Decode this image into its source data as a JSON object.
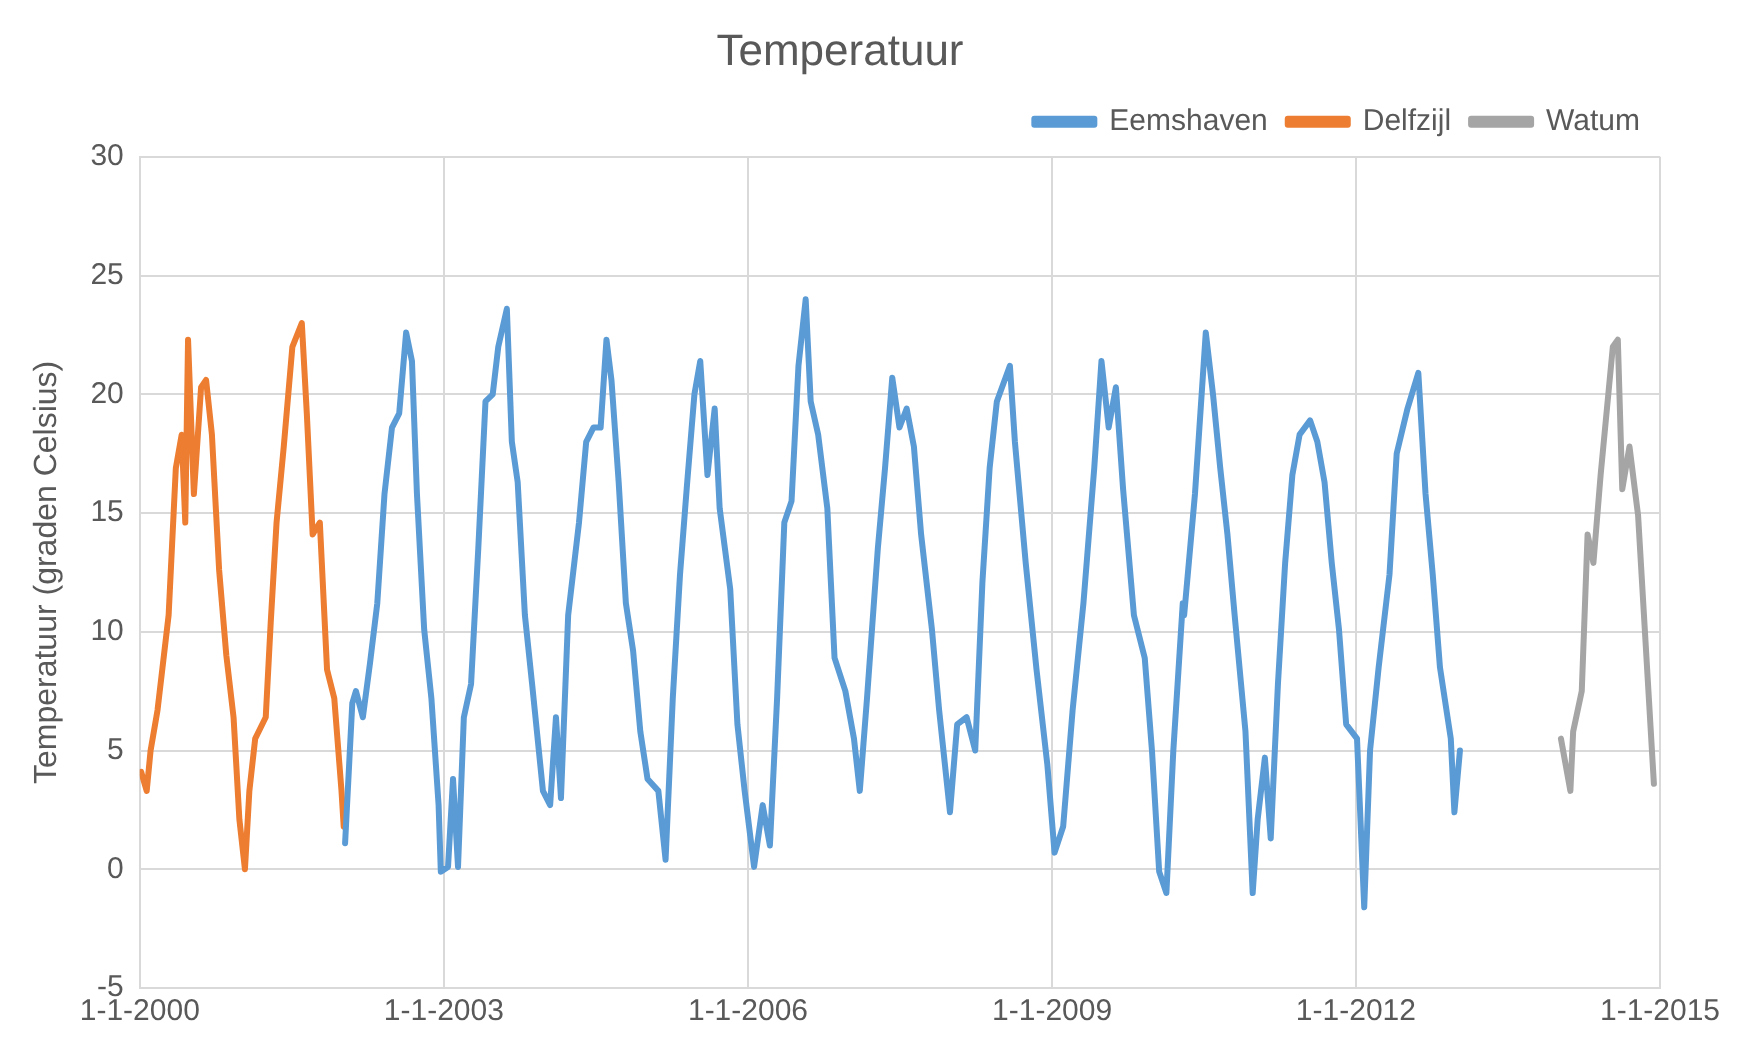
{
  "chart_data": {
    "type": "line",
    "title": "Temperatuur",
    "ylabel": "Temperatuur (graden Celsius)",
    "legend": "top right",
    "grid": true,
    "marker": "none",
    "line_style": "solid",
    "xlim": [
      "2000-01-01",
      "2015-01-01"
    ],
    "xticks": [
      {
        "value": "2000-01-01",
        "label": "1-1-2000"
      },
      {
        "value": "2003-01-01",
        "label": "1-1-2003"
      },
      {
        "value": "2006-01-01",
        "label": "1-1-2006"
      },
      {
        "value": "2009-01-01",
        "label": "1-1-2009"
      },
      {
        "value": "2012-01-01",
        "label": "1-1-2012"
      },
      {
        "value": "2015-01-01",
        "label": "1-1-2015"
      }
    ],
    "ylim": [
      -5,
      30
    ],
    "yticks": [
      -5,
      0,
      5,
      10,
      15,
      20,
      25,
      30
    ],
    "series": [
      {
        "name": "Eemshaven",
        "color": "#5b9bd5",
        "x": [
          "2002-01-10",
          "2002-02-05",
          "2002-02-18",
          "2002-03-15",
          "2002-04-10",
          "2002-05-06",
          "2002-06-01",
          "2002-06-28",
          "2002-07-24",
          "2002-08-18",
          "2002-09-08",
          "2002-09-26",
          "2002-10-22",
          "2002-11-17",
          "2002-12-13",
          "2002-12-21",
          "2003-01-16",
          "2003-02-03",
          "2003-02-21",
          "2003-03-14",
          "2003-04-09",
          "2003-05-05",
          "2003-05-31",
          "2003-06-26",
          "2003-07-16",
          "2003-08-16",
          "2003-09-03",
          "2003-09-24",
          "2003-10-20",
          "2003-11-15",
          "2003-12-24",
          "2004-01-19",
          "2004-02-09",
          "2004-02-27",
          "2004-03-24",
          "2004-05-02",
          "2004-05-28",
          "2004-06-23",
          "2004-07-19",
          "2004-08-09",
          "2004-08-27",
          "2004-09-22",
          "2004-10-18",
          "2004-11-13",
          "2004-12-09",
          "2005-01-04",
          "2005-02-12",
          "2005-03-10",
          "2005-04-05",
          "2005-05-01",
          "2005-05-27",
          "2005-06-22",
          "2005-07-13",
          "2005-08-08",
          "2005-09-03",
          "2005-09-21",
          "2005-10-29",
          "2005-11-24",
          "2005-12-20",
          "2006-01-23",
          "2006-02-23",
          "2006-03-21",
          "2006-04-16",
          "2006-05-12",
          "2006-06-07",
          "2006-07-02",
          "2006-07-28",
          "2006-08-15",
          "2006-09-11",
          "2006-10-14",
          "2006-11-09",
          "2006-12-18",
          "2007-01-18",
          "2007-02-08",
          "2007-03-06",
          "2007-04-14",
          "2007-05-10",
          "2007-06-05",
          "2007-07-01",
          "2007-07-27",
          "2007-08-22",
          "2007-09-17",
          "2007-10-26",
          "2007-11-21",
          "2007-12-30",
          "2008-01-25",
          "2008-02-28",
          "2008-03-30",
          "2008-04-25",
          "2008-05-21",
          "2008-06-16",
          "2008-08-02",
          "2008-08-20",
          "2008-09-28",
          "2008-11-06",
          "2008-12-15",
          "2009-01-10",
          "2009-02-10",
          "2009-03-16",
          "2009-04-24",
          "2009-06-02",
          "2009-06-28",
          "2009-07-24",
          "2009-08-19",
          "2009-09-14",
          "2009-10-23",
          "2009-12-01",
          "2009-12-27",
          "2010-01-22",
          "2010-02-17",
          "2010-03-14",
          "2010-04-17",
          "2010-04-22",
          "2010-05-31",
          "2010-07-09",
          "2010-08-04",
          "2010-08-30",
          "2010-09-25",
          "2010-10-21",
          "2010-11-29",
          "2010-12-25",
          "2011-01-12",
          "2011-02-07",
          "2011-02-28",
          "2011-03-26",
          "2011-04-21",
          "2011-05-17",
          "2011-06-12",
          "2011-07-20",
          "2011-08-15",
          "2011-09-10",
          "2011-10-06",
          "2011-11-01",
          "2011-11-27",
          "2012-01-05",
          "2012-01-31",
          "2012-02-21",
          "2012-03-23",
          "2012-05-01",
          "2012-05-27",
          "2012-07-05",
          "2012-08-13",
          "2012-09-08",
          "2012-10-04",
          "2012-10-30",
          "2012-12-08",
          "2012-12-21",
          "2013-01-10"
        ],
        "values": [
          1.1,
          7.0,
          7.5,
          6.4,
          8.7,
          11.2,
          15.8,
          18.6,
          19.2,
          22.6,
          21.4,
          15.8,
          10.1,
          7.2,
          2.7,
          -0.1,
          0.1,
          3.8,
          0.1,
          6.4,
          7.8,
          13.5,
          19.7,
          20.0,
          22.0,
          23.6,
          18.0,
          16.3,
          10.7,
          7.8,
          3.3,
          2.7,
          6.4,
          3.0,
          10.7,
          14.6,
          18.0,
          18.6,
          18.6,
          22.3,
          20.6,
          16.3,
          11.2,
          9.2,
          5.8,
          3.8,
          3.3,
          0.4,
          7.2,
          12.4,
          16.3,
          20.0,
          21.4,
          16.6,
          19.4,
          15.2,
          11.8,
          6.1,
          3.3,
          0.1,
          2.7,
          1.0,
          7.2,
          14.6,
          15.5,
          21.2,
          24.0,
          19.7,
          18.3,
          15.2,
          8.9,
          7.5,
          5.5,
          3.3,
          7.2,
          13.5,
          16.9,
          20.7,
          18.6,
          19.4,
          17.8,
          14.1,
          10.1,
          6.7,
          2.4,
          6.1,
          6.4,
          5.0,
          12.1,
          16.9,
          19.7,
          21.2,
          18.0,
          12.9,
          8.4,
          4.4,
          0.7,
          1.8,
          6.7,
          11.2,
          16.9,
          21.4,
          18.6,
          20.3,
          16.0,
          10.7,
          8.9,
          5.0,
          -0.1,
          -1.0,
          5.0,
          11.2,
          10.7,
          15.8,
          22.6,
          20.0,
          16.9,
          14.1,
          10.7,
          5.8,
          -1.0,
          2.1,
          4.7,
          1.3,
          7.8,
          12.9,
          16.6,
          18.3,
          18.9,
          18.0,
          16.3,
          12.9,
          10.1,
          6.1,
          5.5,
          -1.6,
          5.0,
          8.5,
          12.4,
          17.5,
          19.4,
          20.9,
          15.8,
          12.4,
          8.5,
          5.5,
          2.4,
          5.0
        ]
      },
      {
        "name": "Delfzijl",
        "color": "#ed7d31",
        "x": [
          "2000-01-06",
          "2000-01-26",
          "2000-02-09",
          "2000-03-05",
          "2000-04-14",
          "2000-05-10",
          "2000-05-31",
          "2000-06-13",
          "2000-06-23",
          "2000-07-14",
          "2000-08-09",
          "2000-08-27",
          "2000-09-17",
          "2000-10-13",
          "2000-11-08",
          "2000-12-04",
          "2000-12-25",
          "2001-01-14",
          "2001-01-30",
          "2001-02-20",
          "2001-03-30",
          "2001-04-17",
          "2001-05-08",
          "2001-06-03",
          "2001-07-04",
          "2001-08-07",
          "2001-08-25",
          "2001-09-15",
          "2001-10-11",
          "2001-11-06",
          "2001-12-02",
          "2001-12-28",
          "2002-01-05"
        ],
        "values": [
          4.1,
          3.3,
          5.0,
          6.7,
          10.7,
          16.9,
          18.3,
          14.6,
          22.3,
          15.8,
          20.3,
          20.6,
          18.3,
          12.6,
          9.0,
          6.4,
          2.1,
          0,
          3.3,
          5.5,
          6.4,
          10.4,
          14.6,
          17.8,
          22.0,
          23.0,
          19.2,
          14.1,
          14.6,
          8.4,
          7.2,
          3.3,
          1.8
        ]
      },
      {
        "name": "Watum",
        "color": "#a5a5a5",
        "x": [
          "2014-01-09",
          "2014-02-12",
          "2014-02-22",
          "2014-03-25",
          "2014-04-15",
          "2014-05-06",
          "2014-06-01",
          "2014-07-15",
          "2014-08-02",
          "2014-08-18",
          "2014-09-13",
          "2014-10-14",
          "2014-12-10"
        ],
        "values": [
          5.5,
          3.3,
          5.8,
          7.5,
          14.1,
          12.9,
          16.6,
          22.0,
          22.3,
          16.0,
          17.8,
          14.9,
          3.6
        ]
      }
    ]
  }
}
